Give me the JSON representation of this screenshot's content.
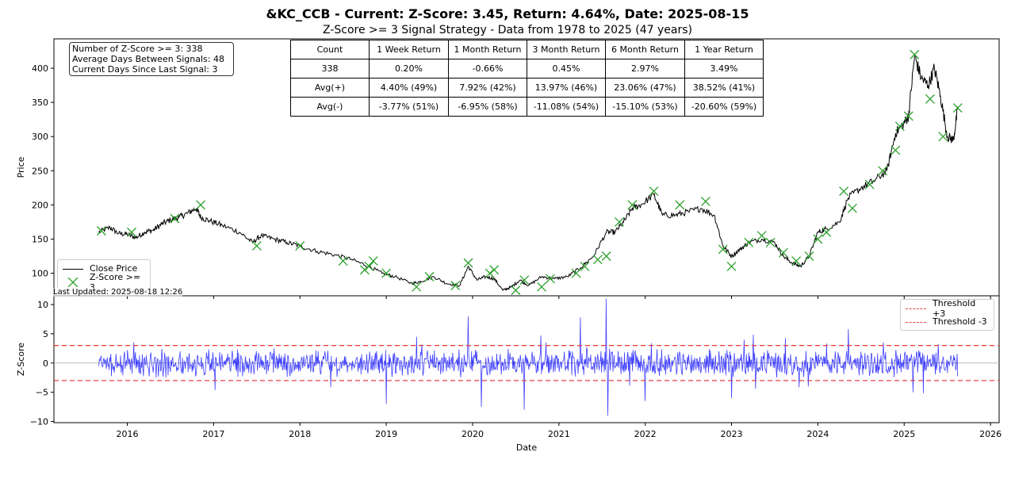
{
  "title": "&KC_CCB - Current: Z-Score: 3.45, Return: 4.64%, Date: 2025-08-15",
  "subtitle": "Z-Score >= 3 Signal Strategy - Data from 1978 to 2025 (47 years)",
  "stats": {
    "line1": "Number of Z-Score >= 3: 338",
    "line2": "Average Days Between Signals: 48",
    "line3": "Current Days Since Last Signal: 3"
  },
  "last_updated": "Last Updated: 2025-08-18 12:26",
  "returns_table": {
    "header": [
      "Count",
      "1 Week Return",
      "1 Month Return",
      "3 Month Return",
      "6 Month Return",
      "1 Year Return"
    ],
    "rows": [
      [
        "338",
        "0.20%",
        "-0.66%",
        "0.45%",
        "2.97%",
        "3.49%"
      ],
      [
        "Avg(+)",
        "4.40% (49%)",
        "7.92% (42%)",
        "13.97% (46%)",
        "23.06% (47%)",
        "38.52% (41%)"
      ],
      [
        "Avg(-)",
        "-3.77% (51%)",
        "-6.95% (58%)",
        "-11.08% (54%)",
        "-15.10% (53%)",
        "-20.60% (59%)"
      ]
    ]
  },
  "colors": {
    "price_line": "#000000",
    "signal_marker": "#2ca02c",
    "zscore_line": "#0000ff",
    "threshold": "#e8413e",
    "zero_line": "#bbbbbb"
  },
  "chart_data": [
    {
      "type": "line",
      "ylabel": "Price",
      "xlim": [
        2015.15,
        2026.1
      ],
      "ylim": [
        67,
        443
      ],
      "yticks": [
        100,
        150,
        200,
        250,
        300,
        350,
        400
      ],
      "legend": [
        "Close Price",
        "Z-Score >= 3"
      ],
      "legend_position": "lower-left",
      "series": [
        {
          "name": "Close Price",
          "x": [
            2015.67,
            2015.8,
            2015.9,
            2016.0,
            2016.1,
            2016.2,
            2016.3,
            2016.4,
            2016.5,
            2016.6,
            2016.7,
            2016.8,
            2016.85,
            2016.95,
            2017.1,
            2017.3,
            2017.45,
            2017.55,
            2017.7,
            2017.85,
            2018.0,
            2018.2,
            2018.4,
            2018.6,
            2018.8,
            2018.95,
            2019.1,
            2019.3,
            2019.4,
            2019.55,
            2019.7,
            2019.85,
            2019.95,
            2020.05,
            2020.15,
            2020.25,
            2020.35,
            2020.45,
            2020.55,
            2020.65,
            2020.8,
            2020.95,
            2021.1,
            2021.25,
            2021.4,
            2021.55,
            2021.65,
            2021.75,
            2021.85,
            2021.95,
            2022.1,
            2022.2,
            2022.35,
            2022.5,
            2022.65,
            2022.8,
            2022.9,
            2023.0,
            2023.1,
            2023.2,
            2023.35,
            2023.5,
            2023.6,
            2023.7,
            2023.8,
            2023.9,
            2024.0,
            2024.1,
            2024.25,
            2024.35,
            2024.5,
            2024.65,
            2024.8,
            2024.9,
            2025.0,
            2025.05,
            2025.12,
            2025.2,
            2025.28,
            2025.35,
            2025.42,
            2025.5,
            2025.57,
            2025.62
          ],
          "values": [
            160,
            167,
            158,
            157,
            152,
            160,
            163,
            172,
            178,
            182,
            188,
            195,
            182,
            177,
            170,
            160,
            145,
            155,
            150,
            145,
            140,
            132,
            127,
            120,
            110,
            100,
            95,
            85,
            88,
            95,
            85,
            82,
            110,
            90,
            95,
            92,
            75,
            80,
            90,
            82,
            95,
            92,
            95,
            108,
            125,
            160,
            160,
            175,
            195,
            200,
            215,
            185,
            185,
            190,
            195,
            185,
            140,
            125,
            135,
            145,
            150,
            145,
            125,
            115,
            110,
            125,
            160,
            165,
            175,
            210,
            225,
            235,
            250,
            305,
            320,
            330,
            418,
            385,
            375,
            400,
            360,
            300,
            295,
            340
          ]
        },
        {
          "name": "Z-Score >= 3",
          "x": [
            2015.7,
            2016.05,
            2016.55,
            2016.85,
            2017.5,
            2018.0,
            2018.5,
            2018.75,
            2018.8,
            2018.85,
            2019.0,
            2019.35,
            2019.5,
            2019.8,
            2019.95,
            2020.2,
            2020.25,
            2020.5,
            2020.6,
            2020.8,
            2020.9,
            2021.2,
            2021.3,
            2021.45,
            2021.55,
            2021.7,
            2021.85,
            2022.1,
            2022.4,
            2022.7,
            2022.9,
            2023.0,
            2023.2,
            2023.35,
            2023.45,
            2023.6,
            2023.75,
            2023.9,
            2024.0,
            2024.1,
            2024.3,
            2024.4,
            2024.6,
            2024.75,
            2024.9,
            2024.95,
            2025.05,
            2025.12,
            2025.3,
            2025.45,
            2025.62
          ],
          "values": [
            162,
            160,
            180,
            200,
            140,
            140,
            118,
            105,
            110,
            118,
            100,
            80,
            95,
            82,
            115,
            100,
            105,
            75,
            90,
            80,
            92,
            100,
            110,
            120,
            125,
            175,
            200,
            220,
            200,
            205,
            135,
            110,
            145,
            155,
            145,
            130,
            118,
            125,
            150,
            160,
            220,
            195,
            230,
            250,
            280,
            315,
            330,
            420,
            355,
            300,
            342
          ]
        }
      ]
    },
    {
      "type": "line",
      "xlabel": "Date",
      "ylabel": "Z-Score",
      "xlim": [
        2015.15,
        2026.1
      ],
      "ylim": [
        -10.2,
        11.5
      ],
      "yticks": [
        -10,
        -5,
        0,
        5,
        10
      ],
      "xticks": [
        2016,
        2017,
        2018,
        2019,
        2020,
        2021,
        2022,
        2023,
        2024,
        2025,
        2026
      ],
      "xticklabels": [
        "2016",
        "2017",
        "2018",
        "2019",
        "2020",
        "2021",
        "2022",
        "2023",
        "2024",
        "2025",
        "2026"
      ],
      "x_range": [
        2015.67,
        2025.62
      ],
      "legend": [
        "Threshold +3",
        "Threshold -3"
      ],
      "legend_position": "upper-right",
      "thresholds": [
        3,
        -3
      ],
      "extremes": [
        {
          "x": 2019.0,
          "value": -7.0
        },
        {
          "x": 2019.95,
          "value": 8.0
        },
        {
          "x": 2020.1,
          "value": -7.5
        },
        {
          "x": 2020.6,
          "value": -8.0
        },
        {
          "x": 2021.25,
          "value": 7.8
        },
        {
          "x": 2021.55,
          "value": 11.0
        },
        {
          "x": 2021.57,
          "value": -9.0
        },
        {
          "x": 2022.0,
          "value": -6.5
        },
        {
          "x": 2023.0,
          "value": -6.0
        },
        {
          "x": 2024.35,
          "value": 5.8
        },
        {
          "x": 2025.1,
          "value": -5.0
        }
      ],
      "series": [
        {
          "name": "Z-Score",
          "noise_amplitude": 2.0
        },
        {
          "name": "Threshold +3",
          "value": 3
        },
        {
          "name": "Threshold -3",
          "value": -3
        }
      ]
    }
  ]
}
